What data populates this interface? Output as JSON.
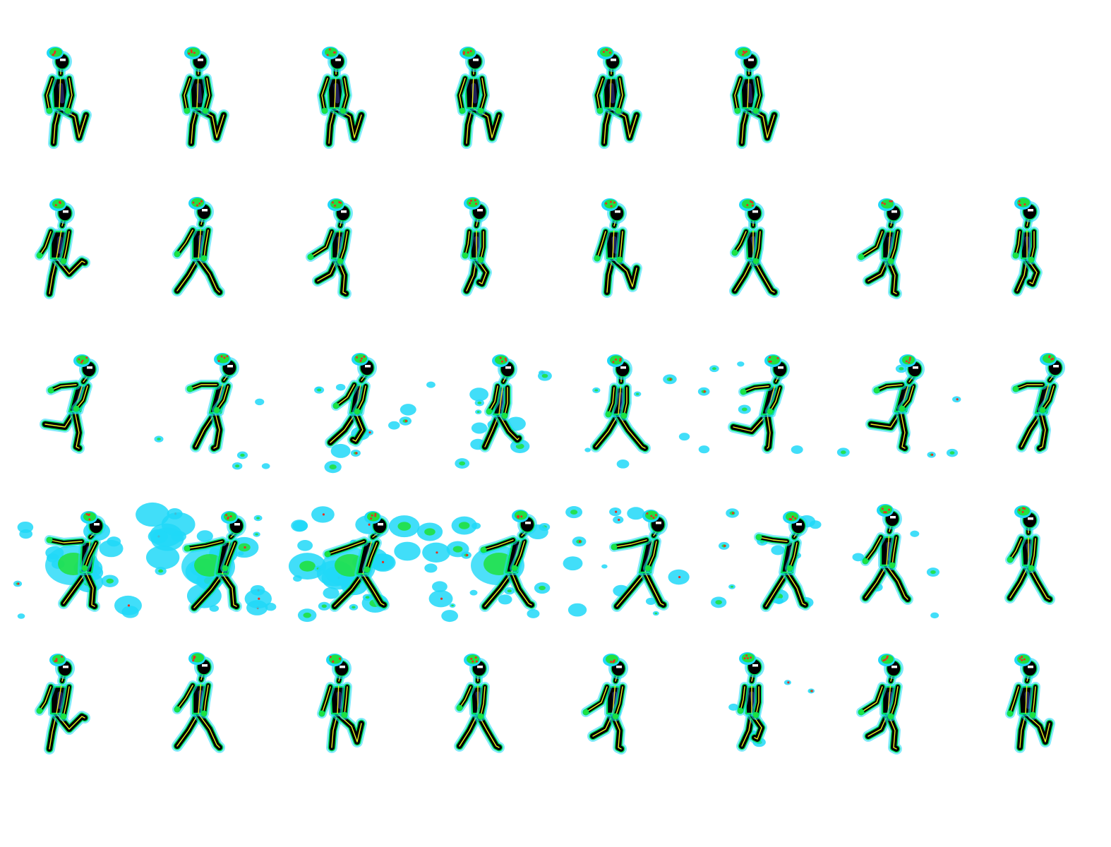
{
  "sprite_sheet": {
    "background": "#ffffff",
    "palette": {
      "body": "#000000",
      "bone": "#e8f020",
      "outline": "#00e060",
      "glow": "#20d8f8",
      "hair_hot": "#e83020",
      "hair_green": "#20e040",
      "eye": "#ffffff",
      "shade": "#20205a"
    },
    "rows": [
      {
        "name": "idle",
        "frames": [
          {
            "pose": "idle"
          },
          {
            "pose": "idle"
          },
          {
            "pose": "idle"
          },
          {
            "pose": "idle"
          },
          {
            "pose": "idle"
          },
          {
            "pose": "idle"
          }
        ]
      },
      {
        "name": "walk",
        "frames": [
          {
            "pose": "walk-a"
          },
          {
            "pose": "walk-b"
          },
          {
            "pose": "walk-c"
          },
          {
            "pose": "walk-d"
          },
          {
            "pose": "walk-e"
          },
          {
            "pose": "walk-f"
          },
          {
            "pose": "walk-c"
          },
          {
            "pose": "walk-d"
          }
        ]
      },
      {
        "name": "run",
        "frames": [
          {
            "pose": "run-a",
            "fx": 0
          },
          {
            "pose": "run-b",
            "fx": 1
          },
          {
            "pose": "run-c",
            "fx": 2
          },
          {
            "pose": "run-d",
            "fx": 2
          },
          {
            "pose": "run-e",
            "fx": 1
          },
          {
            "pose": "run-f",
            "fx": 1
          },
          {
            "pose": "run-a",
            "fx": 1
          },
          {
            "pose": "run-b",
            "fx": 0
          }
        ]
      },
      {
        "name": "dash",
        "frames": [
          {
            "pose": "dash-a",
            "fx": 3
          },
          {
            "pose": "dash-b",
            "fx": 4
          },
          {
            "pose": "dash-c",
            "fx": 4
          },
          {
            "pose": "dash-d",
            "fx": 3
          },
          {
            "pose": "dash-e",
            "fx": 2
          },
          {
            "pose": "dash-f",
            "fx": 2
          },
          {
            "pose": "walk-b",
            "fx": 1
          },
          {
            "pose": "walk-f",
            "fx": 0
          }
        ]
      },
      {
        "name": "jump",
        "frames": [
          {
            "pose": "walk-a",
            "fx": 0
          },
          {
            "pose": "walk-b",
            "fx": 0
          },
          {
            "pose": "walk-e",
            "fx": 0
          },
          {
            "pose": "walk-f",
            "fx": 0
          },
          {
            "pose": "walk-c",
            "fx": 0
          },
          {
            "pose": "walk-d",
            "fx": 1
          },
          {
            "pose": "walk-c",
            "fx": 0
          },
          {
            "pose": "walk-e",
            "fx": 0
          }
        ]
      }
    ]
  }
}
